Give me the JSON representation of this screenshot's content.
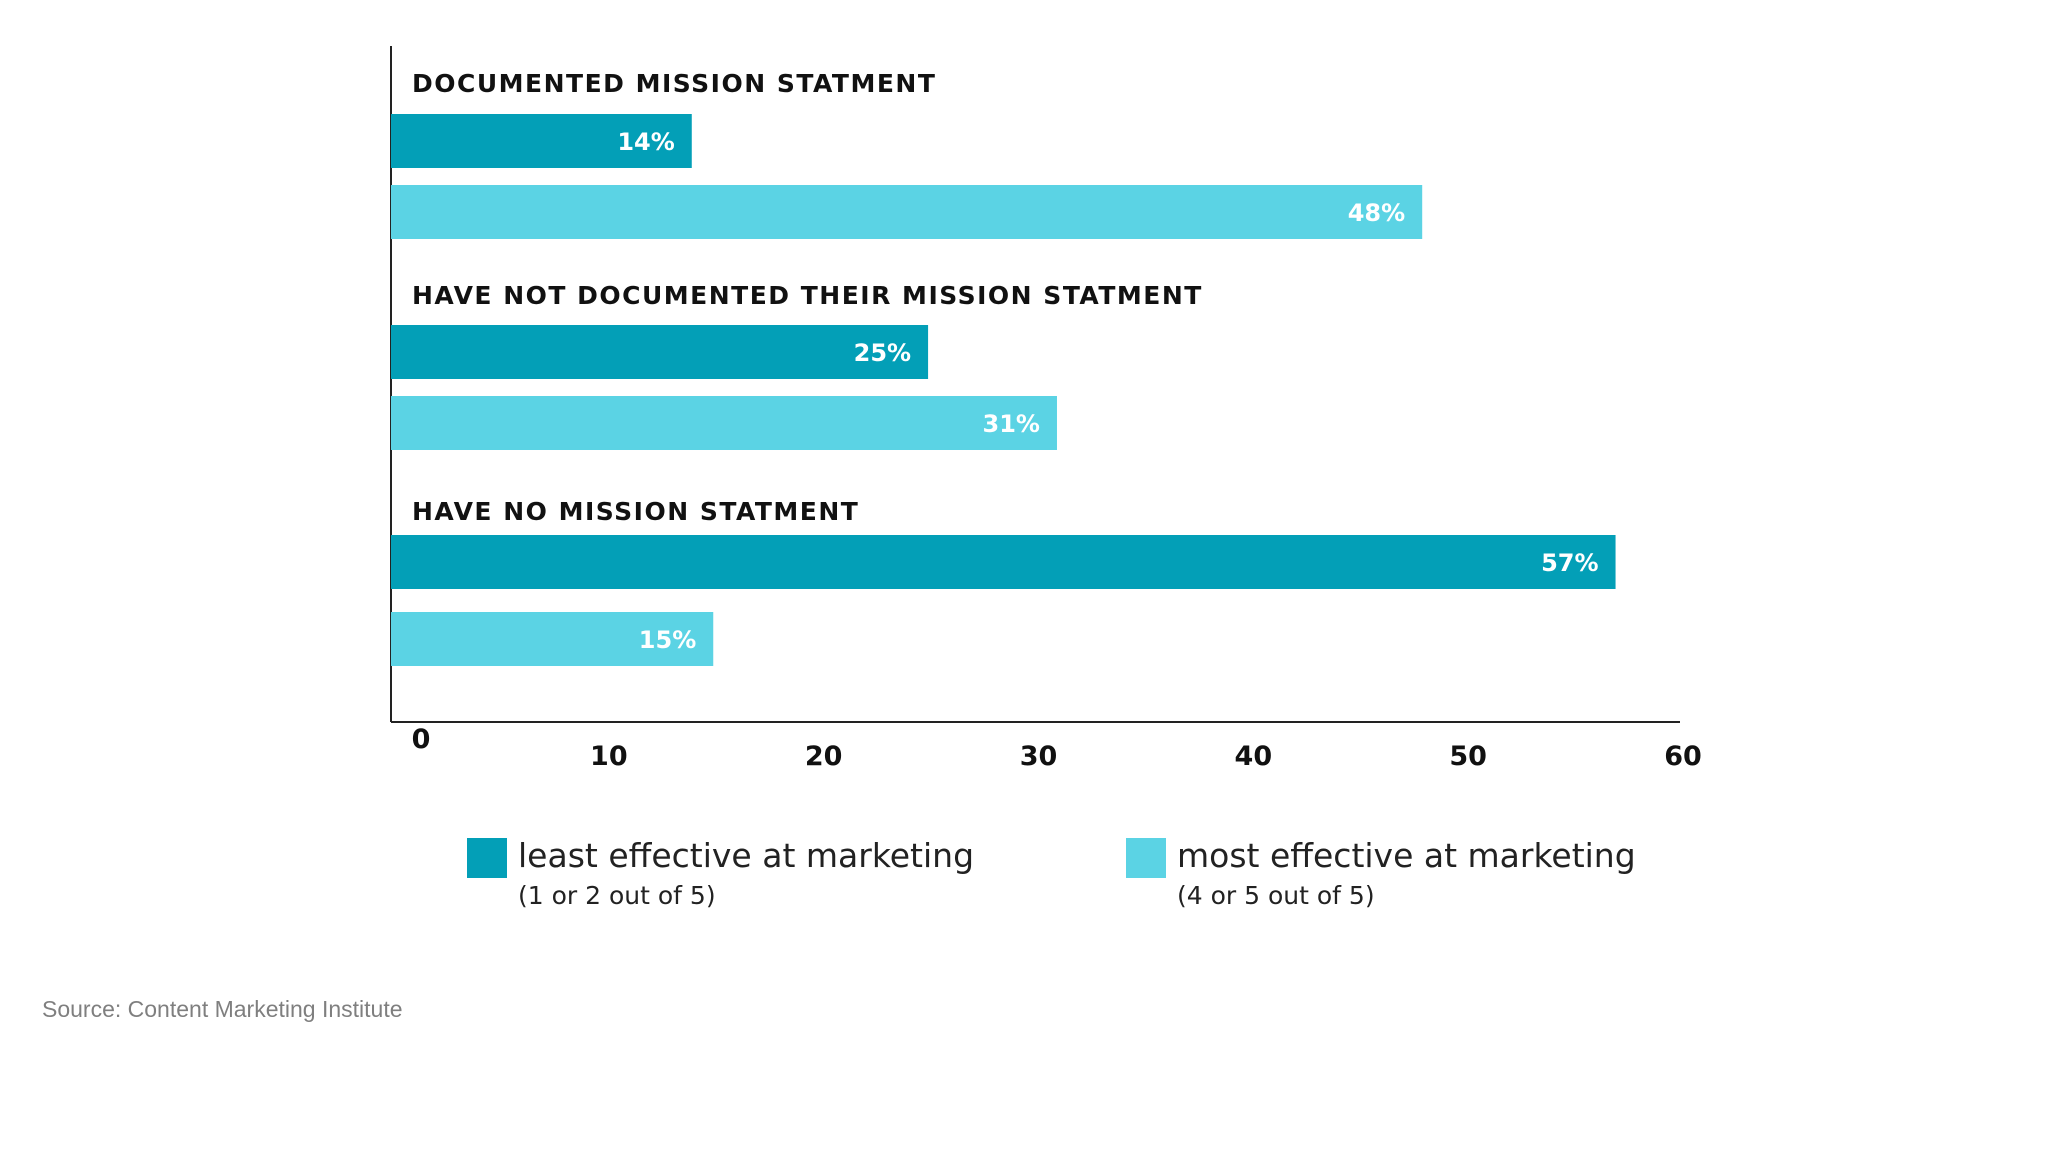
{
  "chart_data": {
    "type": "bar",
    "orientation": "horizontal",
    "categories": [
      "DOCUMENTED MISSION STATMENT",
      "HAVE NOT DOCUMENTED THEIR MISSION STATMENT",
      "HAVE NO MISSION STATMENT"
    ],
    "series": [
      {
        "name": "least effective at marketing",
        "sublabel": "(1 or 2 out of 5)",
        "color": "#039fb7",
        "values": [
          14,
          25,
          57
        ],
        "labels": [
          "14%",
          "25%",
          "57%"
        ]
      },
      {
        "name": "most effective at marketing",
        "sublabel": "(4 or 5 out of 5)",
        "color": "#5bd3e4",
        "values": [
          48,
          31,
          15
        ],
        "labels": [
          "48%",
          "31%",
          "15%"
        ]
      }
    ],
    "xlim": [
      0,
      60
    ],
    "xticks": [
      "0",
      "10",
      "20",
      "30",
      "40",
      "50",
      "60"
    ],
    "grid": false,
    "legend": "bottom"
  },
  "source": "Source: Content Marketing Institute"
}
